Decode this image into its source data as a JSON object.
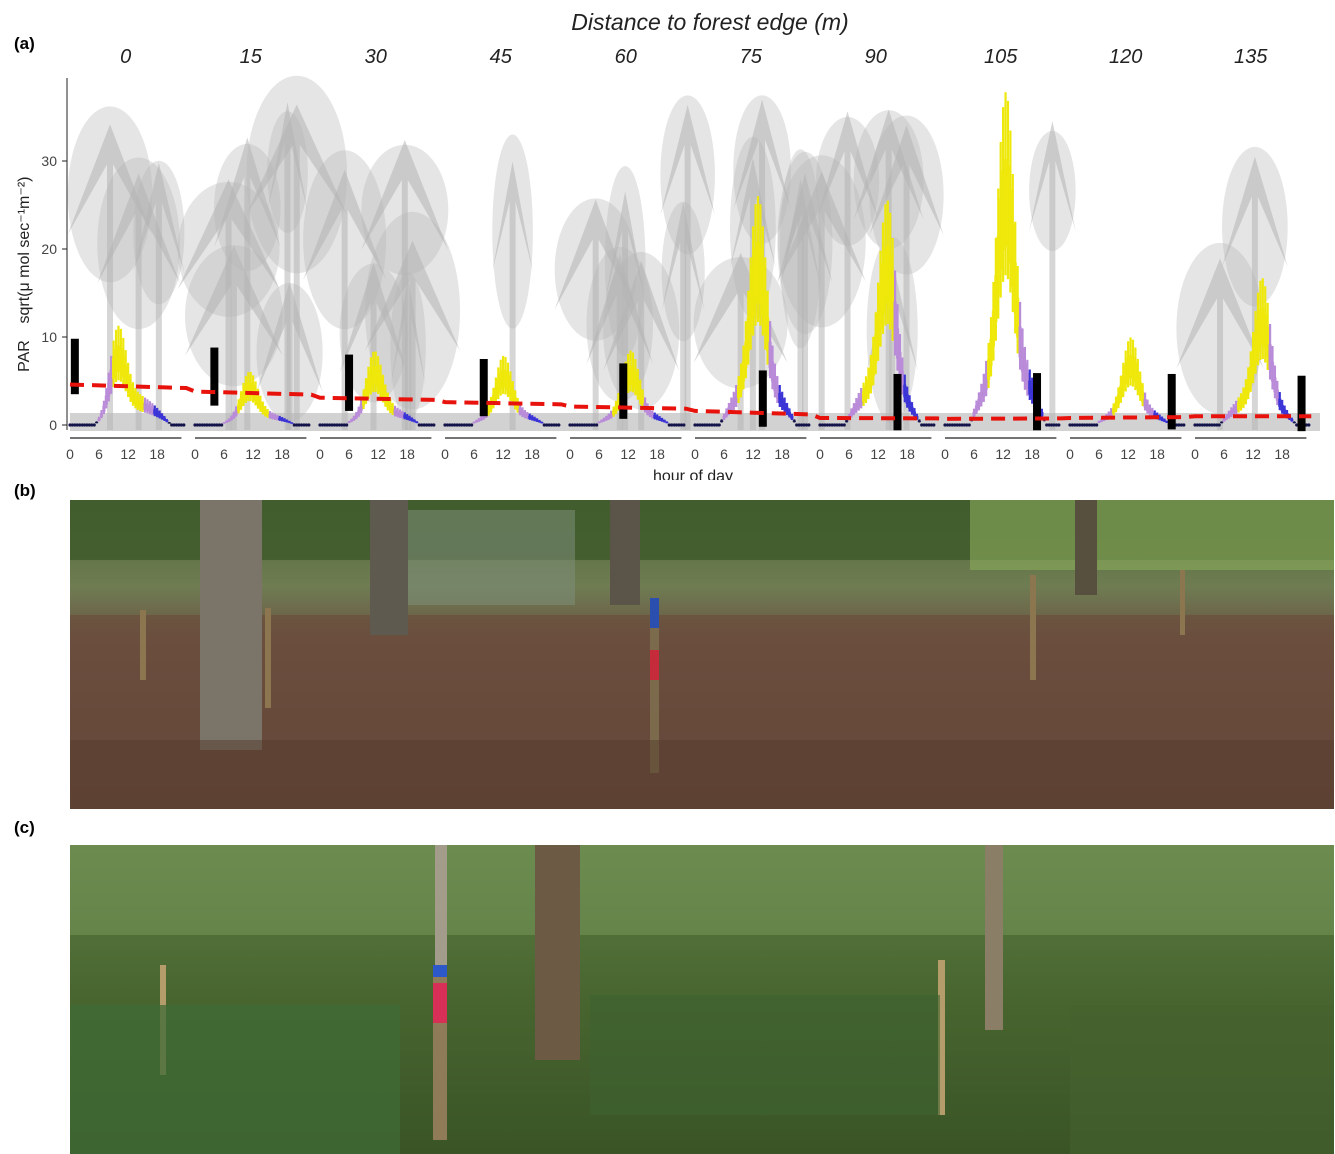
{
  "figure": {
    "label_a": "(a)",
    "label_b": "(b)",
    "label_c": "(c)"
  },
  "chart_data": {
    "type": "box",
    "title": "Distance to forest edge (m)",
    "ylabel_main": "PAR",
    "ylabel_unit": "sqrt(μ mol sec⁻¹m⁻²)",
    "xlabel": "hour of day",
    "ylim": [
      0,
      40
    ],
    "yticks": [
      0,
      10,
      20,
      30
    ],
    "xticks": [
      0,
      6,
      12,
      18
    ],
    "hour_range": [
      0,
      24
    ],
    "grid": false,
    "distances": [
      "0",
      "15",
      "30",
      "45",
      "60",
      "75",
      "90",
      "105",
      "120",
      "135"
    ],
    "daily_peak": [
      14,
      6.5,
      9,
      8,
      8.5,
      26,
      26,
      38,
      10,
      17
    ],
    "peak_hour": [
      9.5,
      11,
      11,
      12,
      12.5,
      13,
      14,
      12.5,
      12.5,
      14
    ],
    "night_level": [
      0,
      0,
      0,
      0,
      0,
      0,
      0,
      0,
      0,
      0
    ],
    "daily_range_bar": [
      {
        "low": 3.5,
        "high": 9.8,
        "hour": 1
      },
      {
        "low": 2.2,
        "high": 8.8,
        "hour": 4
      },
      {
        "low": 1.6,
        "high": 8.0,
        "hour": 6
      },
      {
        "low": 1.0,
        "high": 7.5,
        "hour": 8
      },
      {
        "low": 0.7,
        "high": 7.0,
        "hour": 11
      },
      {
        "low": -0.2,
        "high": 6.2,
        "hour": 14
      },
      {
        "low": -0.6,
        "high": 5.8,
        "hour": 16
      },
      {
        "low": -0.6,
        "high": 5.9,
        "hour": 19
      },
      {
        "low": -0.5,
        "high": 5.8,
        "hour": 21
      },
      {
        "low": -0.7,
        "high": 5.6,
        "hour": 22
      }
    ],
    "trend_line": {
      "name": "",
      "color": "#e8120c",
      "values": [
        4.6,
        3.8,
        3.1,
        2.6,
        2.1,
        1.6,
        0.8,
        0.7,
        0.8,
        1.0
      ]
    },
    "colors": {
      "midday": "#eee80a",
      "afternoon": "#b98bd8",
      "evening": "#3b33d6",
      "night": "#14144a",
      "background_trees": "#b4b4b4",
      "range_bar": "#000000"
    }
  }
}
